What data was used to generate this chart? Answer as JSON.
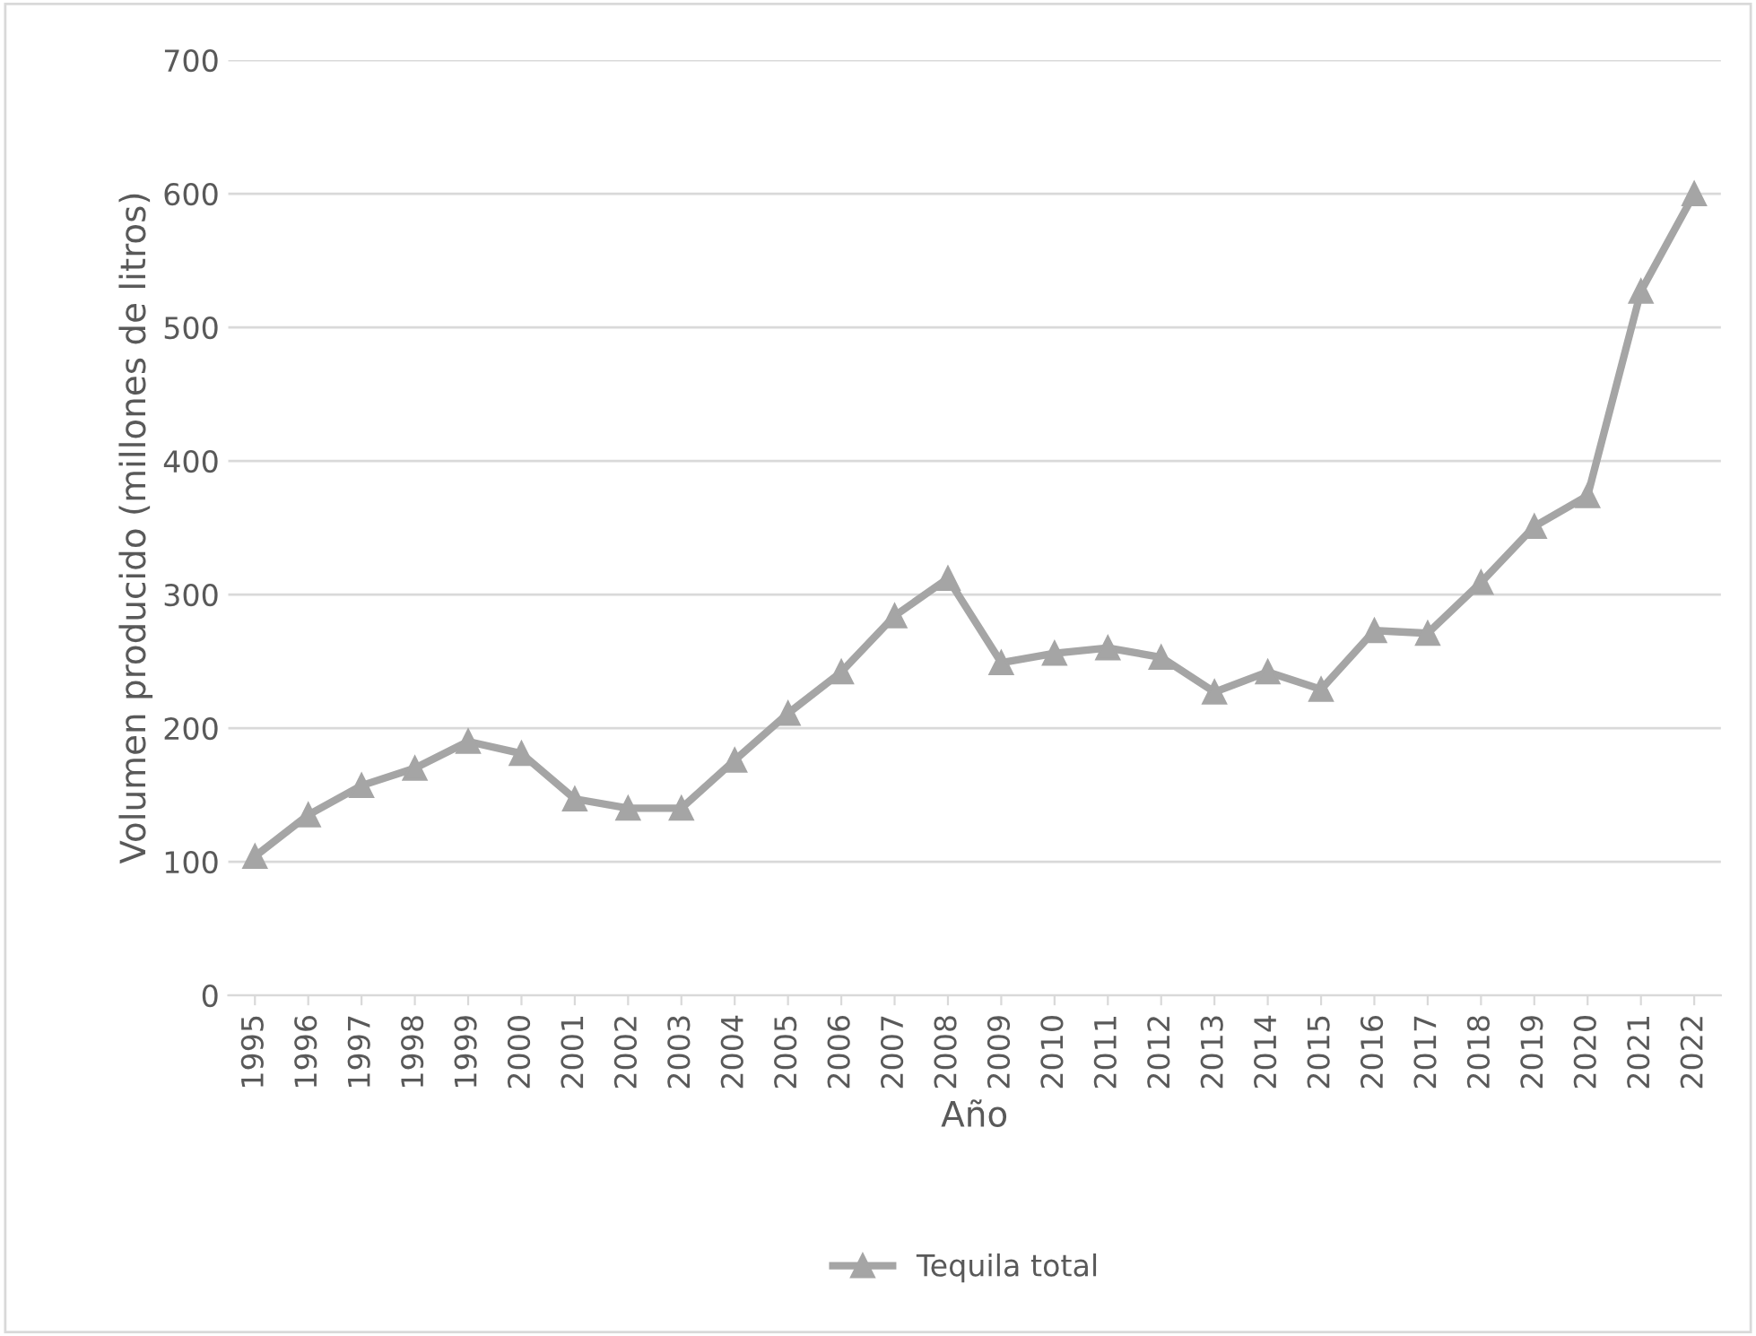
{
  "chart_data": {
    "type": "line",
    "xlabel": "Año",
    "ylabel": "Volumen producido (millones de litros)",
    "categories": [
      "1995",
      "1996",
      "1997",
      "1998",
      "1999",
      "2000",
      "2001",
      "2002",
      "2003",
      "2004",
      "2005",
      "2006",
      "2007",
      "2008",
      "2009",
      "2010",
      "2011",
      "2012",
      "2013",
      "2014",
      "2015",
      "2016",
      "2017",
      "2018",
      "2019",
      "2020",
      "2021",
      "2022"
    ],
    "series": [
      {
        "name": "Tequila total",
        "color": "#a5a5a5",
        "values": [
          104,
          135,
          157,
          170,
          190,
          181,
          147,
          140,
          140,
          176,
          211,
          242,
          284,
          312,
          249,
          256,
          260,
          253,
          227,
          242,
          229,
          273,
          271,
          309,
          351,
          374,
          527,
          600
        ]
      }
    ],
    "ylim": [
      0,
      700
    ],
    "yticks": [
      0,
      100,
      200,
      300,
      400,
      500,
      600,
      700
    ],
    "grid": "y",
    "legend": "bottom",
    "marker": "triangle",
    "line_style": "solid"
  }
}
